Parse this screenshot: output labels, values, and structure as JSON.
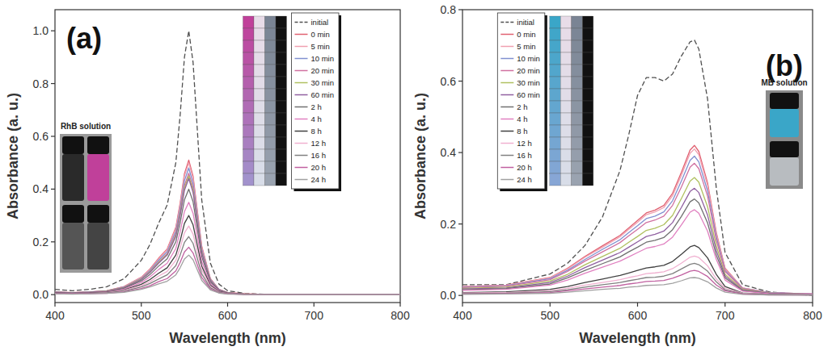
{
  "chart_data": [
    {
      "type": "line",
      "title": "(a)",
      "annotations": [
        "RhB solution"
      ],
      "x_label": "Wavelength (nm)",
      "y_label": "Absorbance (a. u.)",
      "xlim": [
        400,
        800
      ],
      "ylim": [
        -0.03,
        1.08
      ],
      "xticks": [
        400,
        500,
        600,
        700,
        800
      ],
      "yticks": [
        {
          "value": 0,
          "label": "0.0"
        },
        0.2,
        0.4,
        0.6,
        0.8,
        {
          "value": 1,
          "label": "1.0"
        }
      ],
      "grid": false,
      "legend": "upper right",
      "x": [
        400,
        420,
        440,
        460,
        480,
        500,
        510,
        520,
        530,
        540,
        545,
        550,
        555,
        560,
        565,
        570,
        580,
        590,
        600,
        620,
        650,
        700,
        750,
        800
      ],
      "series": [
        {
          "name": "initial",
          "color": "#505050",
          "line_style": "dashed",
          "values": [
            0.02,
            0.015,
            0.02,
            0.03,
            0.06,
            0.13,
            0.19,
            0.27,
            0.34,
            0.5,
            0.68,
            0.9,
            1.0,
            0.88,
            0.62,
            0.36,
            0.12,
            0.04,
            0.015,
            0.005,
            0,
            0,
            0,
            0
          ]
        },
        {
          "name": "0 min",
          "color": "#e06070",
          "line_style": "solid",
          "values": [
            0.01,
            0.008,
            0.01,
            0.015,
            0.031,
            0.066,
            0.097,
            0.138,
            0.173,
            0.255,
            0.347,
            0.459,
            0.51,
            0.449,
            0.316,
            0.184,
            0.061,
            0.02,
            0.008,
            0.003,
            0,
            0,
            0,
            0
          ]
        },
        {
          "name": "5 min",
          "color": "#f0a0b0",
          "line_style": "solid",
          "values": [
            0.01,
            0.008,
            0.01,
            0.015,
            0.03,
            0.065,
            0.095,
            0.135,
            0.17,
            0.25,
            0.34,
            0.45,
            0.5,
            0.44,
            0.31,
            0.18,
            0.06,
            0.02,
            0.008,
            0.003,
            0,
            0,
            0,
            0
          ]
        },
        {
          "name": "10 min",
          "color": "#8090d0",
          "line_style": "solid",
          "values": [
            0.01,
            0.007,
            0.01,
            0.014,
            0.029,
            0.062,
            0.091,
            0.13,
            0.163,
            0.24,
            0.326,
            0.432,
            0.48,
            0.422,
            0.298,
            0.173,
            0.058,
            0.019,
            0.007,
            0.002,
            0,
            0,
            0,
            0
          ]
        },
        {
          "name": "20 min",
          "color": "#d070a0",
          "line_style": "solid",
          "values": [
            0.009,
            0.007,
            0.009,
            0.014,
            0.028,
            0.06,
            0.087,
            0.124,
            0.156,
            0.23,
            0.313,
            0.414,
            0.46,
            0.405,
            0.285,
            0.166,
            0.055,
            0.018,
            0.007,
            0.002,
            0,
            0,
            0,
            0
          ]
        },
        {
          "name": "30 min",
          "color": "#b0c060",
          "line_style": "solid",
          "values": [
            0.009,
            0.007,
            0.009,
            0.014,
            0.027,
            0.059,
            0.086,
            0.122,
            0.153,
            0.225,
            0.306,
            0.405,
            0.45,
            0.396,
            0.279,
            0.162,
            0.054,
            0.018,
            0.007,
            0.002,
            0,
            0,
            0,
            0
          ]
        },
        {
          "name": "60 min",
          "color": "#9060a0",
          "line_style": "solid",
          "values": [
            0.009,
            0.007,
            0.009,
            0.013,
            0.026,
            0.057,
            0.084,
            0.119,
            0.15,
            0.22,
            0.299,
            0.396,
            0.44,
            0.387,
            0.273,
            0.158,
            0.053,
            0.018,
            0.007,
            0.002,
            0,
            0,
            0,
            0
          ]
        },
        {
          "name": "2 h",
          "color": "#707070",
          "line_style": "solid",
          "values": [
            0.008,
            0.006,
            0.008,
            0.012,
            0.024,
            0.052,
            0.076,
            0.108,
            0.136,
            0.2,
            0.272,
            0.36,
            0.4,
            0.352,
            0.248,
            0.144,
            0.048,
            0.016,
            0.006,
            0.002,
            0,
            0,
            0,
            0
          ]
        },
        {
          "name": "4 h",
          "color": "#e080c0",
          "line_style": "solid",
          "values": [
            0.007,
            0.005,
            0.007,
            0.011,
            0.021,
            0.046,
            0.067,
            0.095,
            0.119,
            0.175,
            0.238,
            0.315,
            0.35,
            0.308,
            0.217,
            0.126,
            0.042,
            0.014,
            0.005,
            0.002,
            0,
            0,
            0,
            0
          ]
        },
        {
          "name": "8 h",
          "color": "#404040",
          "line_style": "solid",
          "values": [
            0.006,
            0.005,
            0.006,
            0.009,
            0.018,
            0.039,
            0.057,
            0.081,
            0.102,
            0.15,
            0.204,
            0.27,
            0.3,
            0.264,
            0.186,
            0.108,
            0.036,
            0.012,
            0.005,
            0.002,
            0,
            0,
            0,
            0
          ]
        },
        {
          "name": "12 h",
          "color": "#f0b0d0",
          "line_style": "solid",
          "values": [
            0.005,
            0.004,
            0.005,
            0.008,
            0.016,
            0.034,
            0.049,
            0.07,
            0.088,
            0.13,
            0.177,
            0.234,
            0.26,
            0.229,
            0.161,
            0.094,
            0.031,
            0.01,
            0.004,
            0.001,
            0,
            0,
            0,
            0
          ]
        },
        {
          "name": "16 h",
          "color": "#808080",
          "line_style": "solid",
          "values": [
            0.004,
            0.003,
            0.004,
            0.007,
            0.013,
            0.029,
            0.042,
            0.059,
            0.075,
            0.11,
            0.15,
            0.198,
            0.22,
            0.194,
            0.136,
            0.079,
            0.026,
            0.009,
            0.003,
            0.001,
            0,
            0,
            0,
            0
          ]
        },
        {
          "name": "20 h",
          "color": "#c060a0",
          "line_style": "solid",
          "values": [
            0.004,
            0.003,
            0.004,
            0.005,
            0.011,
            0.023,
            0.034,
            0.049,
            0.061,
            0.09,
            0.122,
            0.162,
            0.18,
            0.158,
            0.112,
            0.065,
            0.022,
            0.007,
            0.003,
            0.001,
            0,
            0,
            0,
            0
          ]
        },
        {
          "name": "24 h",
          "color": "#a0a0a0",
          "line_style": "solid",
          "values": [
            0.003,
            0.002,
            0.003,
            0.005,
            0.009,
            0.02,
            0.029,
            0.041,
            0.051,
            0.075,
            0.102,
            0.135,
            0.15,
            0.132,
            0.093,
            0.054,
            0.018,
            0.006,
            0.002,
            0.001,
            0,
            0,
            0,
            0
          ]
        }
      ]
    },
    {
      "type": "line",
      "title": "(b)",
      "annotations": [
        "MB solution"
      ],
      "x_label": "Wavelength (nm)",
      "y_label": "Absorbance (a. u.)",
      "xlim": [
        400,
        800
      ],
      "ylim": [
        -0.02,
        0.8
      ],
      "xticks": [
        400,
        500,
        600,
        700,
        800
      ],
      "yticks": [
        {
          "value": 0,
          "label": "0.0"
        },
        0.2,
        0.4,
        0.6,
        0.8
      ],
      "grid": false,
      "legend": "upper left",
      "x": [
        400,
        450,
        500,
        520,
        540,
        560,
        580,
        590,
        600,
        610,
        620,
        630,
        640,
        650,
        660,
        665,
        670,
        680,
        690,
        700,
        720,
        750,
        800
      ],
      "series": [
        {
          "name": "initial",
          "color": "#505050",
          "line_style": "dashed",
          "values": [
            0.03,
            0.03,
            0.06,
            0.09,
            0.14,
            0.22,
            0.35,
            0.45,
            0.56,
            0.61,
            0.61,
            0.6,
            0.62,
            0.67,
            0.71,
            0.715,
            0.69,
            0.55,
            0.3,
            0.12,
            0.03,
            0.01,
            0
          ]
        },
        {
          "name": "0 min",
          "color": "#e06070",
          "line_style": "solid",
          "values": [
            0.025,
            0.029,
            0.05,
            0.076,
            0.109,
            0.139,
            0.168,
            0.189,
            0.21,
            0.231,
            0.239,
            0.252,
            0.286,
            0.344,
            0.407,
            0.42,
            0.403,
            0.315,
            0.176,
            0.076,
            0.021,
            0.008,
            0.004
          ]
        },
        {
          "name": "5 min",
          "color": "#f0a0b0",
          "line_style": "solid",
          "values": [
            0.025,
            0.029,
            0.049,
            0.074,
            0.107,
            0.135,
            0.164,
            0.185,
            0.205,
            0.226,
            0.234,
            0.246,
            0.279,
            0.336,
            0.398,
            0.41,
            0.394,
            0.308,
            0.172,
            0.074,
            0.021,
            0.008,
            0.004
          ]
        },
        {
          "name": "10 min",
          "color": "#8090d0",
          "line_style": "solid",
          "values": [
            0.023,
            0.027,
            0.047,
            0.07,
            0.101,
            0.129,
            0.156,
            0.176,
            0.195,
            0.215,
            0.222,
            0.234,
            0.265,
            0.32,
            0.378,
            0.39,
            0.374,
            0.293,
            0.164,
            0.07,
            0.02,
            0.008,
            0.004
          ]
        },
        {
          "name": "20 min",
          "color": "#d070a0",
          "line_style": "solid",
          "values": [
            0.022,
            0.026,
            0.044,
            0.067,
            0.096,
            0.122,
            0.148,
            0.167,
            0.185,
            0.204,
            0.211,
            0.222,
            0.252,
            0.303,
            0.359,
            0.37,
            0.355,
            0.278,
            0.155,
            0.067,
            0.019,
            0.007,
            0.004
          ]
        },
        {
          "name": "30 min",
          "color": "#b0c060",
          "line_style": "solid",
          "values": [
            0.02,
            0.023,
            0.04,
            0.059,
            0.086,
            0.109,
            0.132,
            0.149,
            0.165,
            0.182,
            0.188,
            0.198,
            0.224,
            0.271,
            0.32,
            0.33,
            0.317,
            0.248,
            0.139,
            0.059,
            0.017,
            0.007,
            0.003
          ]
        },
        {
          "name": "60 min",
          "color": "#9060a0",
          "line_style": "solid",
          "values": [
            0.018,
            0.021,
            0.036,
            0.054,
            0.078,
            0.099,
            0.12,
            0.135,
            0.15,
            0.165,
            0.171,
            0.18,
            0.204,
            0.246,
            0.291,
            0.3,
            0.288,
            0.225,
            0.126,
            0.054,
            0.015,
            0.006,
            0.003
          ]
        },
        {
          "name": "2 h",
          "color": "#707070",
          "line_style": "solid",
          "values": [
            0.016,
            0.019,
            0.032,
            0.049,
            0.07,
            0.089,
            0.108,
            0.122,
            0.135,
            0.149,
            0.154,
            0.162,
            0.184,
            0.221,
            0.262,
            0.27,
            0.259,
            0.203,
            0.113,
            0.049,
            0.014,
            0.005,
            0.003
          ]
        },
        {
          "name": "4 h",
          "color": "#e080c0",
          "line_style": "solid",
          "values": [
            0.014,
            0.017,
            0.029,
            0.043,
            0.062,
            0.079,
            0.096,
            0.108,
            0.12,
            0.132,
            0.137,
            0.144,
            0.163,
            0.197,
            0.233,
            0.24,
            0.23,
            0.18,
            0.101,
            0.043,
            0.012,
            0.005,
            0.002
          ]
        },
        {
          "name": "8 h",
          "color": "#404040",
          "line_style": "solid",
          "values": [
            0.008,
            0.01,
            0.017,
            0.025,
            0.036,
            0.046,
            0.056,
            0.063,
            0.07,
            0.077,
            0.08,
            0.084,
            0.095,
            0.115,
            0.136,
            0.14,
            0.134,
            0.105,
            0.059,
            0.025,
            0.007,
            0.003,
            0.001
          ]
        },
        {
          "name": "12 h",
          "color": "#f0b0d0",
          "line_style": "solid",
          "values": [
            0.007,
            0.008,
            0.013,
            0.02,
            0.029,
            0.036,
            0.044,
            0.05,
            0.055,
            0.061,
            0.063,
            0.066,
            0.075,
            0.09,
            0.107,
            0.11,
            0.106,
            0.083,
            0.046,
            0.02,
            0.006,
            0.002,
            0.001
          ]
        },
        {
          "name": "16 h",
          "color": "#808080",
          "line_style": "solid",
          "values": [
            0.005,
            0.006,
            0.011,
            0.016,
            0.023,
            0.03,
            0.036,
            0.041,
            0.045,
            0.05,
            0.051,
            0.054,
            0.061,
            0.074,
            0.087,
            0.09,
            0.086,
            0.068,
            0.038,
            0.016,
            0.005,
            0.002,
            0.001
          ]
        },
        {
          "name": "20 h",
          "color": "#c060a0",
          "line_style": "solid",
          "values": [
            0.004,
            0.005,
            0.008,
            0.013,
            0.018,
            0.023,
            0.028,
            0.032,
            0.035,
            0.039,
            0.04,
            0.042,
            0.048,
            0.057,
            0.068,
            0.07,
            0.067,
            0.053,
            0.029,
            0.013,
            0.004,
            0.001,
            0.001
          ]
        },
        {
          "name": "24 h",
          "color": "#a0a0a0",
          "line_style": "solid",
          "values": [
            0.003,
            0.004,
            0.006,
            0.009,
            0.013,
            0.017,
            0.02,
            0.023,
            0.025,
            0.028,
            0.029,
            0.03,
            0.034,
            0.041,
            0.049,
            0.05,
            0.048,
            0.038,
            0.021,
            0.009,
            0.003,
            0.001,
            0.001
          ]
        }
      ]
    }
  ]
}
